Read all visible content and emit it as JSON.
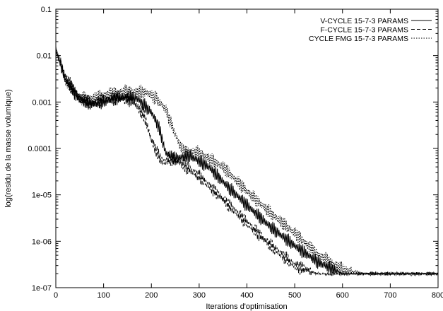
{
  "chart_data": {
    "type": "line",
    "title": "",
    "xlabel": "Iterations d'optimisation",
    "ylabel": "log(residu de la masse volumique)",
    "xlim": [
      0,
      800
    ],
    "ylim": [
      1e-07,
      0.1
    ],
    "yscale": "log",
    "grid": false,
    "legend_position": "top-right",
    "x_ticks": [
      0,
      100,
      200,
      300,
      400,
      500,
      600,
      700,
      800
    ],
    "x_tick_labels": [
      "0",
      "100",
      "200",
      "300",
      "400",
      "500",
      "600",
      "700",
      "800"
    ],
    "y_ticks": [
      1e-07,
      1e-06,
      1e-05,
      0.0001,
      0.001,
      0.01,
      0.1
    ],
    "y_tick_labels": [
      "1e-07",
      "1e-06",
      "1e-05",
      "0.0001",
      "0.001",
      "0.01",
      "0.1"
    ],
    "series": [
      {
        "name": "V-CYCLE 15-7-3 PARAMS",
        "style": "solid",
        "x": [
          0,
          20,
          50,
          80,
          110,
          140,
          170,
          200,
          215,
          230,
          250,
          280,
          320,
          360,
          400,
          450,
          500,
          550,
          600,
          650,
          700,
          750,
          800
        ],
        "y": [
          0.013,
          0.003,
          0.0011,
          0.0009,
          0.0011,
          0.0013,
          0.0012,
          0.0006,
          0.0003,
          8e-05,
          6e-05,
          7e-05,
          4e-05,
          1.5e-05,
          6e-06,
          2e-06,
          8e-07,
          3.5e-07,
          2e-07,
          2e-07,
          2e-07,
          2e-07,
          2e-07
        ]
      },
      {
        "name": "F-CYCLE 15-7-3 PARAMS",
        "style": "dashed",
        "x": [
          0,
          20,
          45,
          70,
          100,
          130,
          160,
          185,
          200,
          215,
          225,
          240,
          260,
          300,
          350,
          400,
          450,
          500,
          550,
          580,
          600
        ],
        "y": [
          0.014,
          0.0035,
          0.0014,
          0.0009,
          0.0011,
          0.0012,
          0.0011,
          0.0005,
          0.00015,
          7e-05,
          5e-05,
          6e-05,
          5e-05,
          2.5e-05,
          8e-06,
          2.5e-06,
          8e-07,
          3e-07,
          2e-07,
          2e-07,
          2e-07
        ]
      },
      {
        "name": "CYCLE FMG 15-7-3 PARAMS",
        "style": "dotted",
        "x": [
          0,
          20,
          50,
          80,
          110,
          150,
          190,
          210,
          230,
          250,
          265,
          300,
          350,
          400,
          450,
          500,
          550,
          600,
          640,
          660,
          700,
          800
        ],
        "y": [
          0.015,
          0.003,
          0.0012,
          0.0012,
          0.0015,
          0.0017,
          0.0016,
          0.0012,
          0.0007,
          0.0002,
          9e-05,
          8e-05,
          4e-05,
          1.2e-05,
          4e-06,
          1.5e-06,
          5e-07,
          2.5e-07,
          2e-07,
          2e-07,
          2e-07,
          2e-07
        ]
      }
    ]
  }
}
